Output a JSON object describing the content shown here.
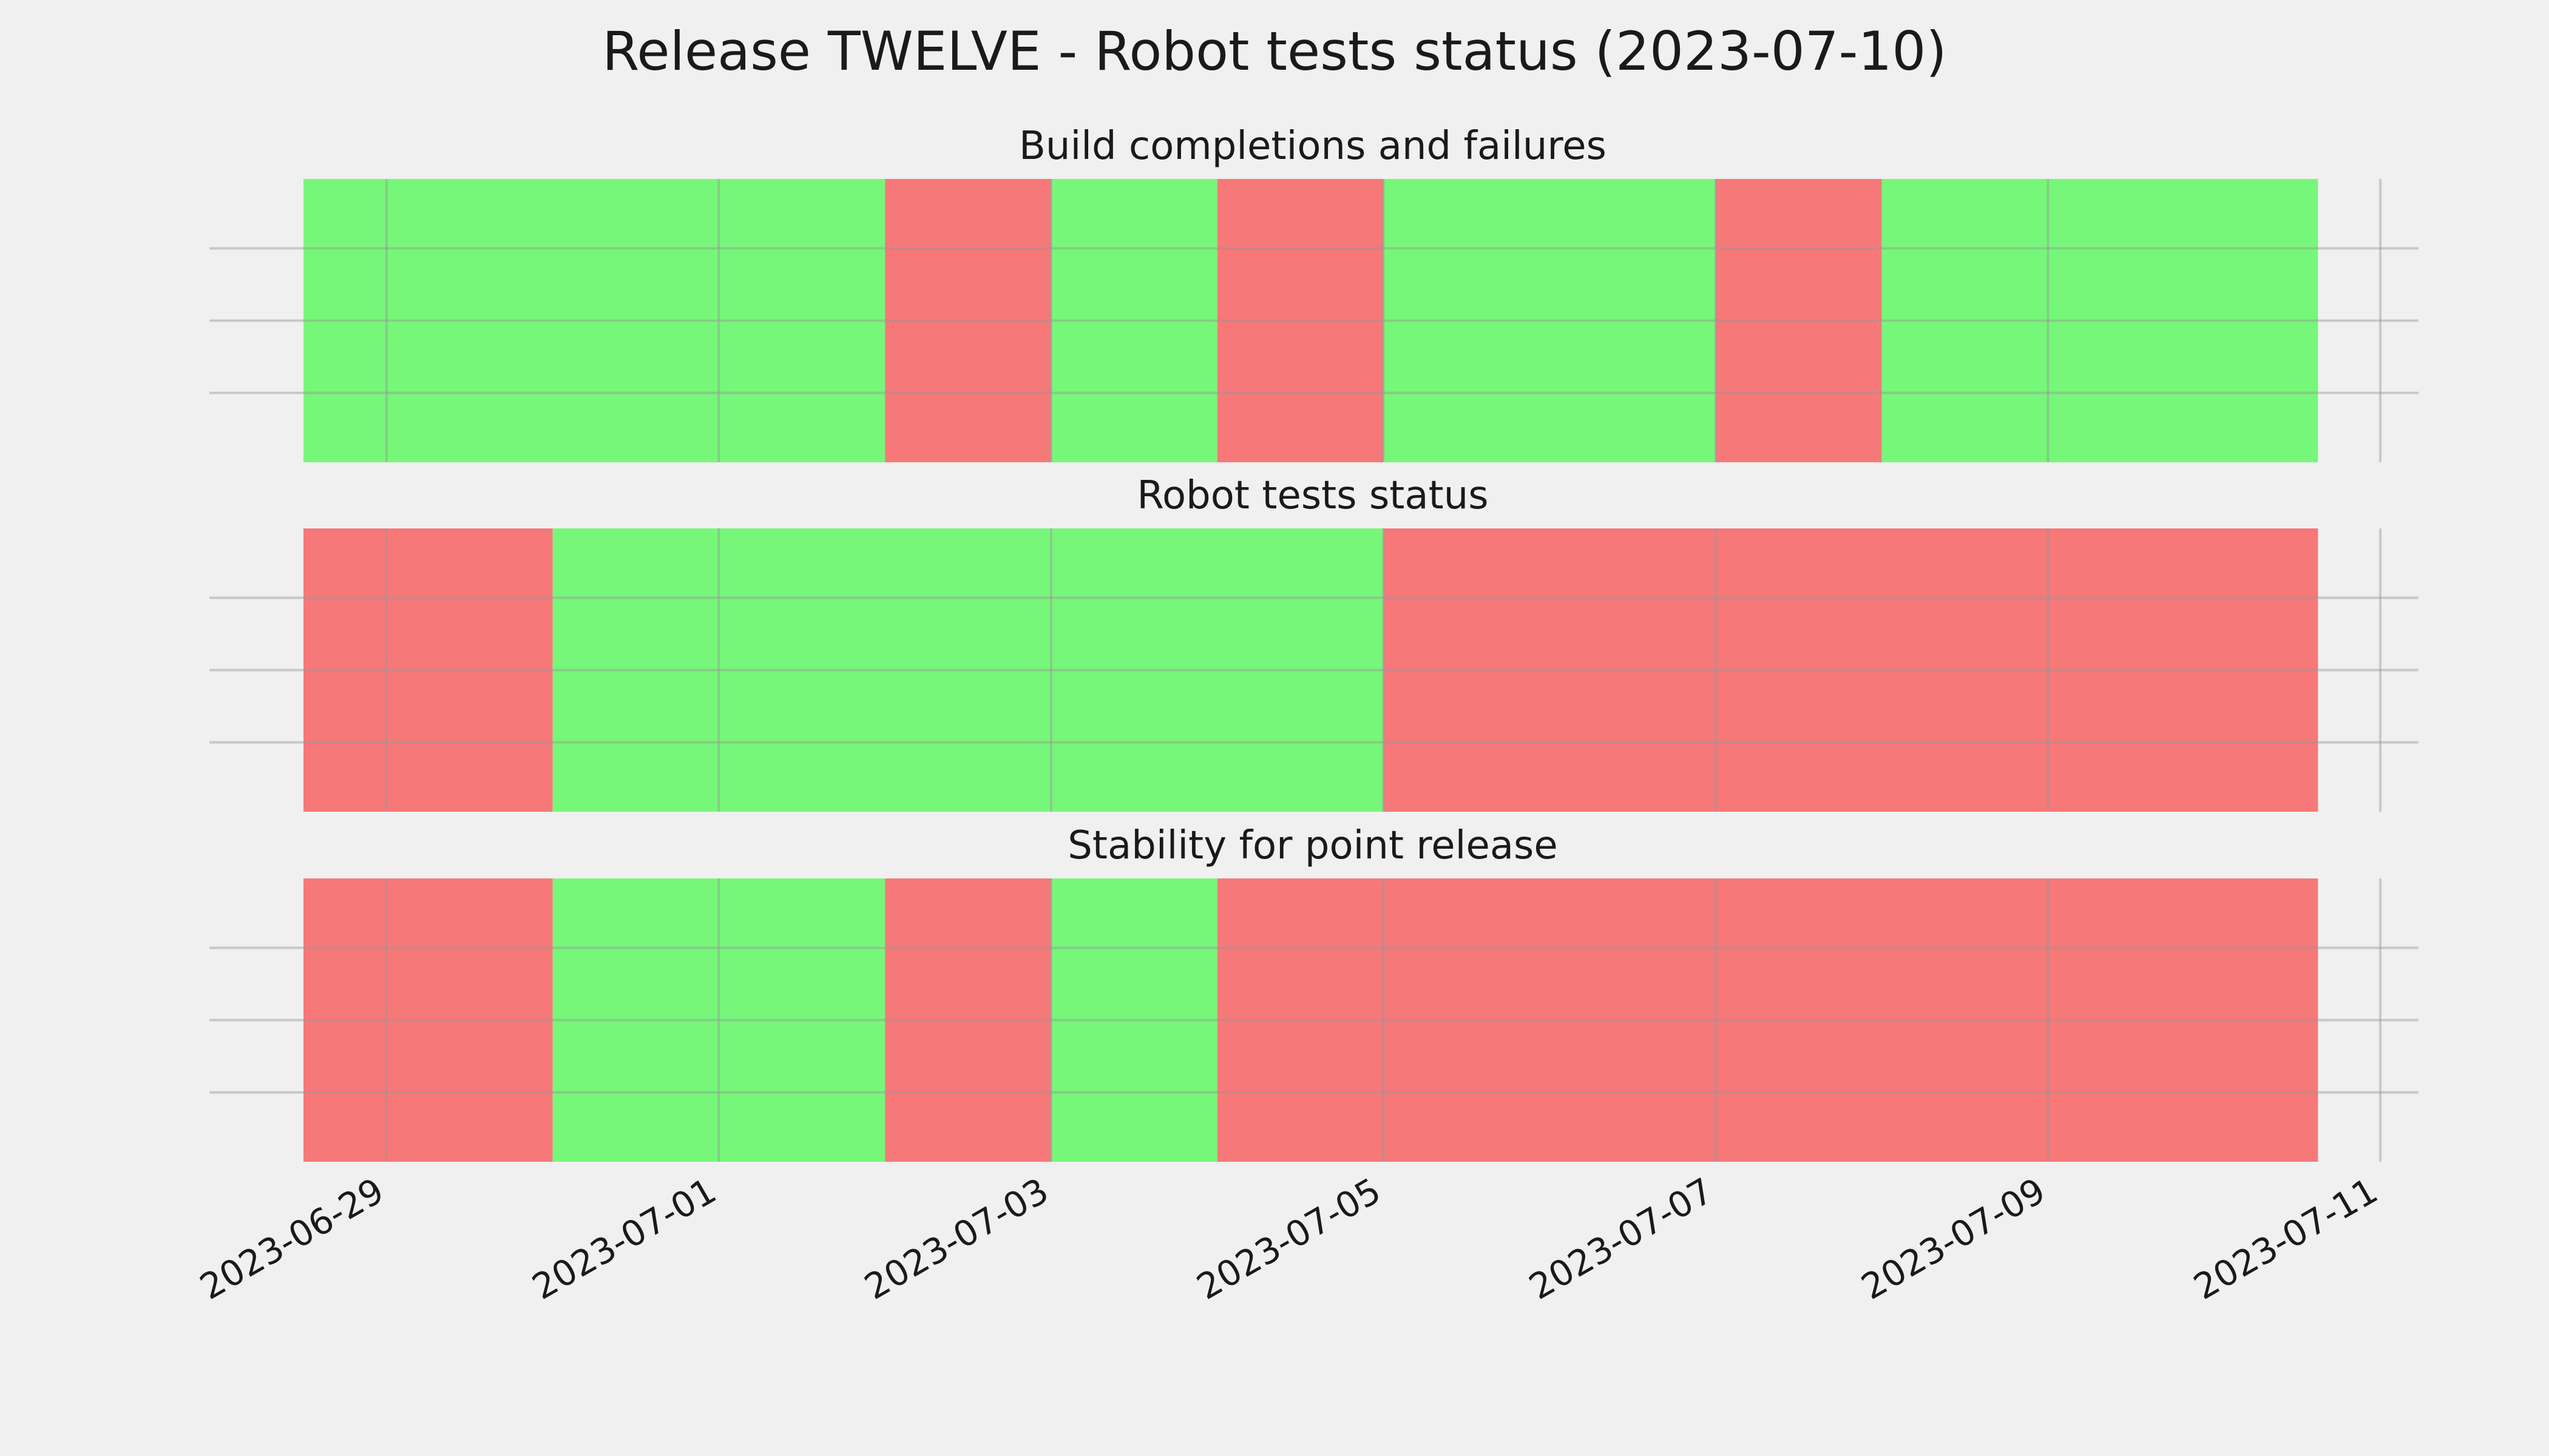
{
  "chart_data": {
    "type": "timeline",
    "title": "Release TWELVE - Robot tests status (2023-07-10)",
    "colors": {
      "pass": "#77f77a",
      "fail": "#f77878"
    },
    "x_range": [
      "2023-06-28T12:00",
      "2023-07-11"
    ],
    "x_ticks": [
      "2023-06-29",
      "2023-07-01",
      "2023-07-03",
      "2023-07-05",
      "2023-07-07",
      "2023-07-09",
      "2023-07-11"
    ],
    "grid": true,
    "panels": [
      {
        "title": "Build completions and failures",
        "segments": [
          {
            "start": "2023-06-28T12:00",
            "end": "2023-07-02",
            "status": "pass"
          },
          {
            "start": "2023-07-02",
            "end": "2023-07-03",
            "status": "fail"
          },
          {
            "start": "2023-07-03",
            "end": "2023-07-04",
            "status": "pass"
          },
          {
            "start": "2023-07-04",
            "end": "2023-07-05",
            "status": "fail"
          },
          {
            "start": "2023-07-05",
            "end": "2023-07-07",
            "status": "pass"
          },
          {
            "start": "2023-07-07",
            "end": "2023-07-08",
            "status": "fail"
          },
          {
            "start": "2023-07-08",
            "end": "2023-07-10T15:00",
            "status": "pass"
          }
        ]
      },
      {
        "title": "Robot tests status",
        "segments": [
          {
            "start": "2023-06-28T12:00",
            "end": "2023-06-30",
            "status": "fail"
          },
          {
            "start": "2023-06-30",
            "end": "2023-07-05",
            "status": "pass"
          },
          {
            "start": "2023-07-05",
            "end": "2023-07-10T15:00",
            "status": "fail"
          }
        ]
      },
      {
        "title": "Stability for point release",
        "segments": [
          {
            "start": "2023-06-28T12:00",
            "end": "2023-06-30",
            "status": "fail"
          },
          {
            "start": "2023-06-30",
            "end": "2023-07-02",
            "status": "pass"
          },
          {
            "start": "2023-07-02",
            "end": "2023-07-03",
            "status": "fail"
          },
          {
            "start": "2023-07-03",
            "end": "2023-07-04",
            "status": "pass"
          },
          {
            "start": "2023-07-04",
            "end": "2023-07-10T15:00",
            "status": "fail"
          }
        ]
      }
    ]
  }
}
